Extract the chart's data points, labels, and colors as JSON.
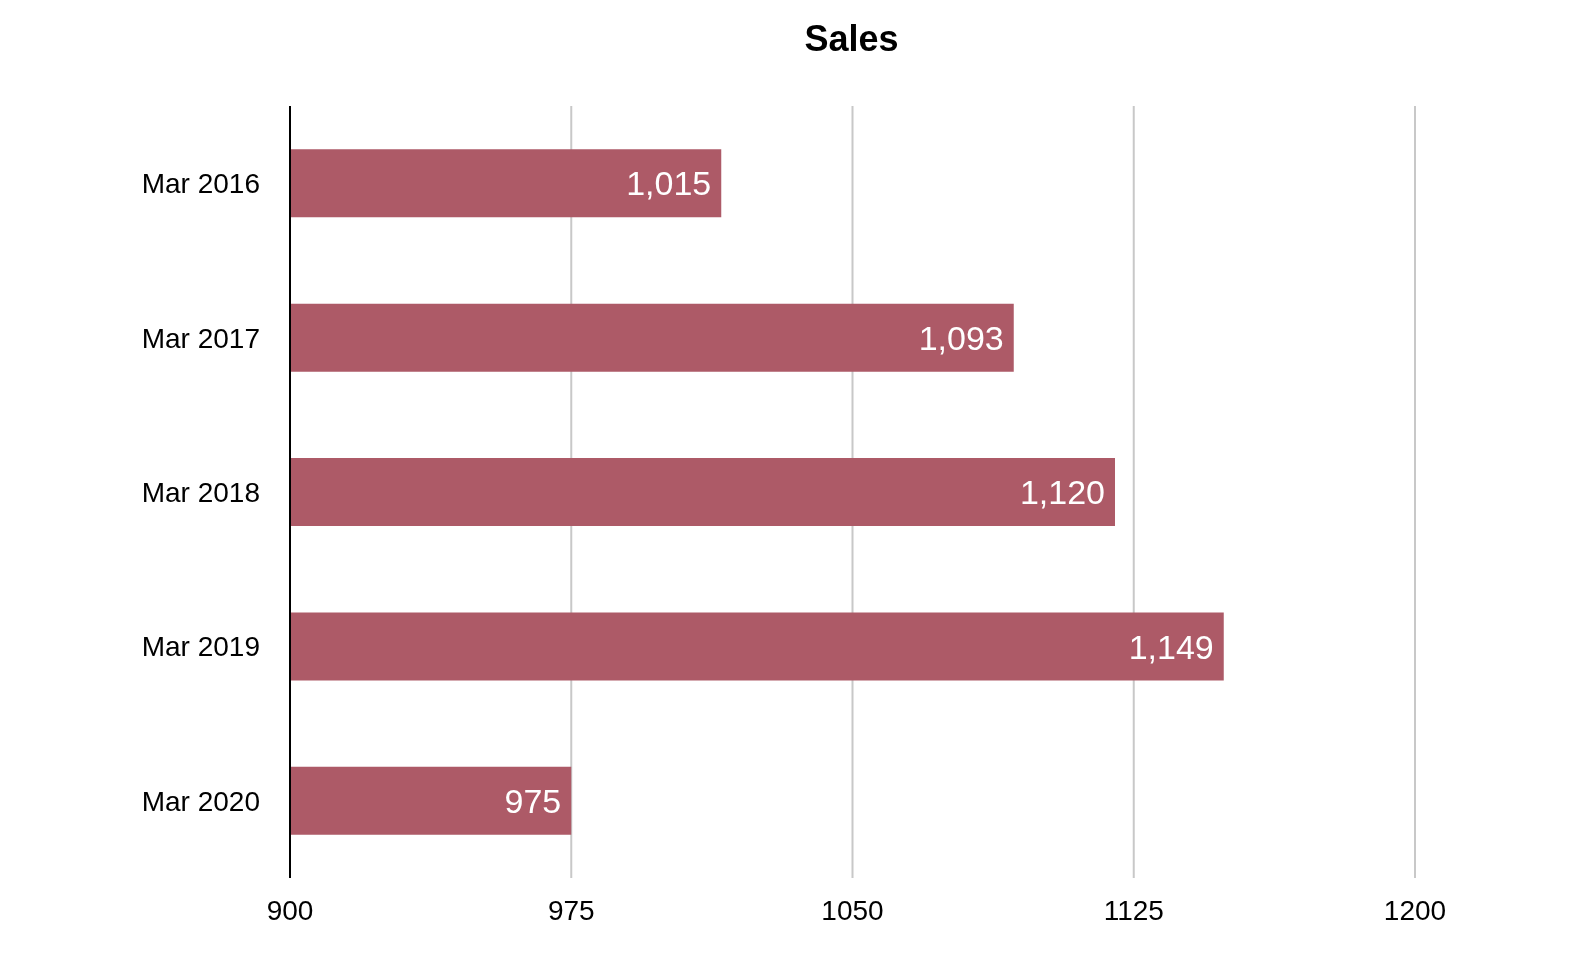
{
  "chart_data": {
    "type": "bar",
    "title": "Sales",
    "orientation": "horizontal",
    "categories": [
      "Mar 2016",
      "Mar 2017",
      "Mar 2018",
      "Mar 2019",
      "Mar 2020"
    ],
    "values": [
      1015,
      1093,
      1120,
      1149,
      975
    ],
    "value_labels": [
      "1,015",
      "1,093",
      "1,120",
      "1,149",
      "975"
    ],
    "color": "#ad5a67",
    "xlim": [
      900,
      1200
    ],
    "xticks": [
      900,
      975,
      1050,
      1125,
      1200
    ],
    "grid": "x"
  }
}
